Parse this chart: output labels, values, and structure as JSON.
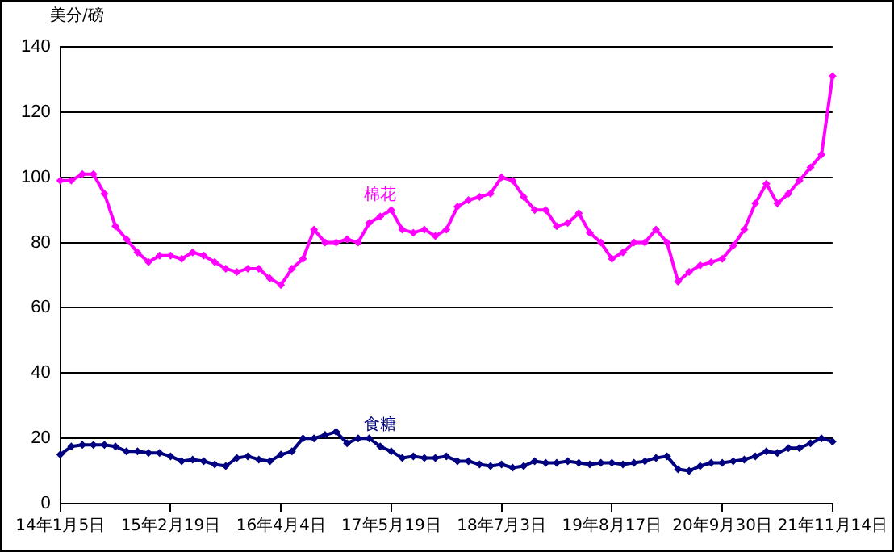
{
  "chart_data": {
    "type": "line",
    "ylabel": "美分/磅",
    "categories": [
      "14年1月5日",
      null,
      null,
      null,
      null,
      null,
      null,
      null,
      null,
      null,
      "15年2月19日",
      null,
      null,
      null,
      null,
      null,
      null,
      null,
      null,
      null,
      "16年4月4日",
      null,
      null,
      null,
      null,
      null,
      null,
      null,
      null,
      null,
      "17年5月19日",
      null,
      null,
      null,
      null,
      null,
      null,
      null,
      null,
      null,
      "18年7月3日",
      null,
      null,
      null,
      null,
      null,
      null,
      null,
      null,
      null,
      "19年8月17日",
      null,
      null,
      null,
      null,
      null,
      null,
      null,
      null,
      null,
      "20年9月30日",
      null,
      null,
      null,
      null,
      null,
      null,
      null,
      null,
      null,
      "21年11月14日"
    ],
    "series": [
      {
        "name": "棉花",
        "color": "#ff00ff",
        "values": [
          99,
          99,
          101,
          101,
          95,
          85,
          81,
          77,
          74,
          76,
          76,
          75,
          77,
          76,
          74,
          72,
          71,
          72,
          72,
          69,
          67,
          72,
          75,
          84,
          80,
          80,
          81,
          80,
          86,
          88,
          90,
          84,
          83,
          84,
          82,
          84,
          91,
          93,
          94,
          95,
          100,
          99,
          94,
          90,
          90,
          85,
          86,
          89,
          83,
          80,
          75,
          77,
          80,
          80,
          84,
          80,
          68,
          71,
          73,
          74,
          75,
          79,
          84,
          92,
          98,
          92,
          95,
          99,
          103,
          107,
          131
        ]
      },
      {
        "name": "食糖",
        "color": "#000080",
        "values": [
          15,
          17.5,
          18,
          18,
          18,
          17.5,
          16,
          16,
          15.5,
          15.5,
          14.5,
          13,
          13.5,
          13,
          12,
          11.5,
          14,
          14.5,
          13.5,
          13,
          15,
          16,
          20,
          20,
          21,
          22,
          18.5,
          20,
          20,
          17.5,
          16,
          14,
          14.5,
          14,
          14,
          14.5,
          13,
          13,
          12,
          11.5,
          12,
          11,
          11.5,
          13,
          12.5,
          12.5,
          13,
          12.5,
          12,
          12.5,
          12.5,
          12,
          12.5,
          13,
          14,
          14.5,
          10.5,
          10,
          11.5,
          12.5,
          12.5,
          13,
          13.5,
          14.5,
          16,
          15.5,
          17,
          17,
          18.5,
          20,
          19
        ]
      }
    ],
    "ylim": [
      0,
      140
    ],
    "yticks": [
      0,
      20,
      40,
      60,
      80,
      100,
      120,
      140
    ],
    "grid": "y",
    "legend": false,
    "marker": "diamond",
    "line_style": "solid"
  }
}
